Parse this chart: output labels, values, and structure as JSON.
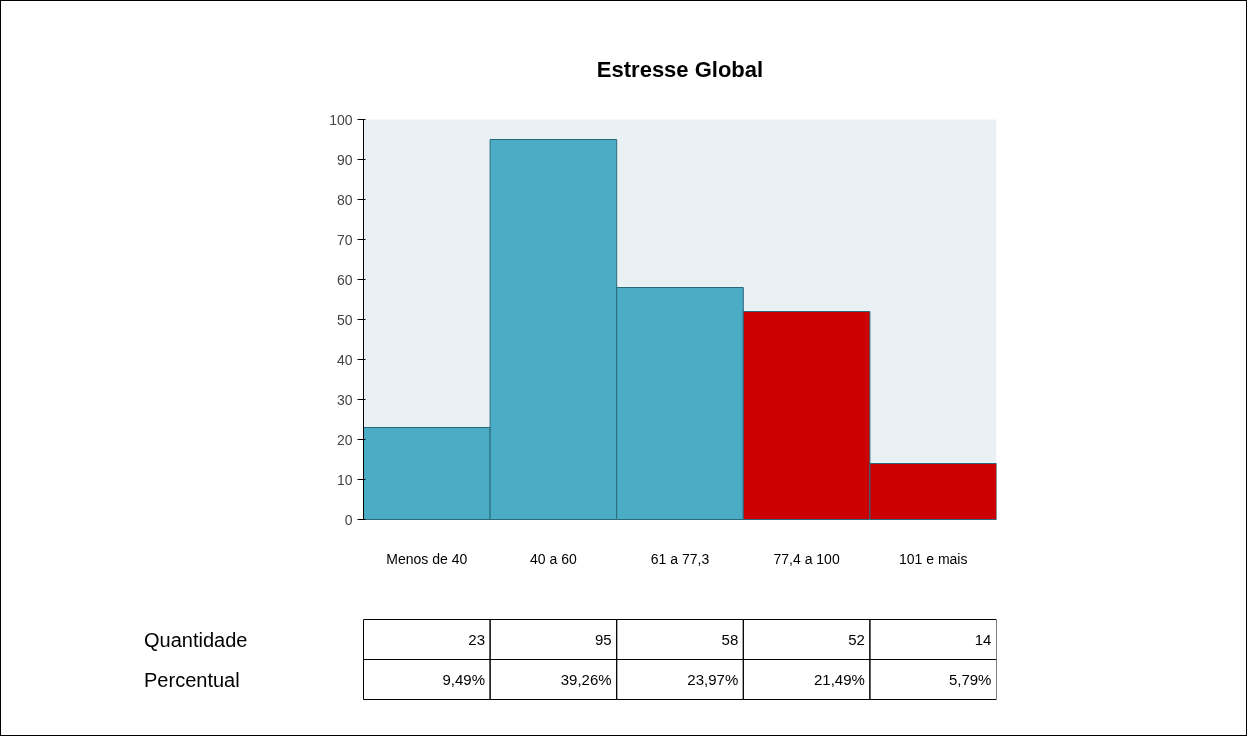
{
  "chart_data": {
    "type": "bar",
    "title": "Estresse Global",
    "categories": [
      "Menos de 40",
      "40 a 60",
      "61 a 77,3",
      "77,4 a 100",
      "101 e mais"
    ],
    "values": [
      23,
      95,
      58,
      52,
      14
    ],
    "colors": [
      "#4bacc6",
      "#4bacc6",
      "#4bacc6",
      "#cc0000",
      "#cc0000"
    ],
    "ylim": [
      0,
      100
    ],
    "yticks": [
      0,
      10,
      20,
      30,
      40,
      50,
      60,
      70,
      80,
      90,
      100
    ],
    "grid": false,
    "data_labels": true,
    "annotations": [
      "Quantidade",
      "Percentual",
      "9,49%",
      "39,26%",
      "23,97%",
      "21,49%",
      "5,79%"
    ]
  }
}
